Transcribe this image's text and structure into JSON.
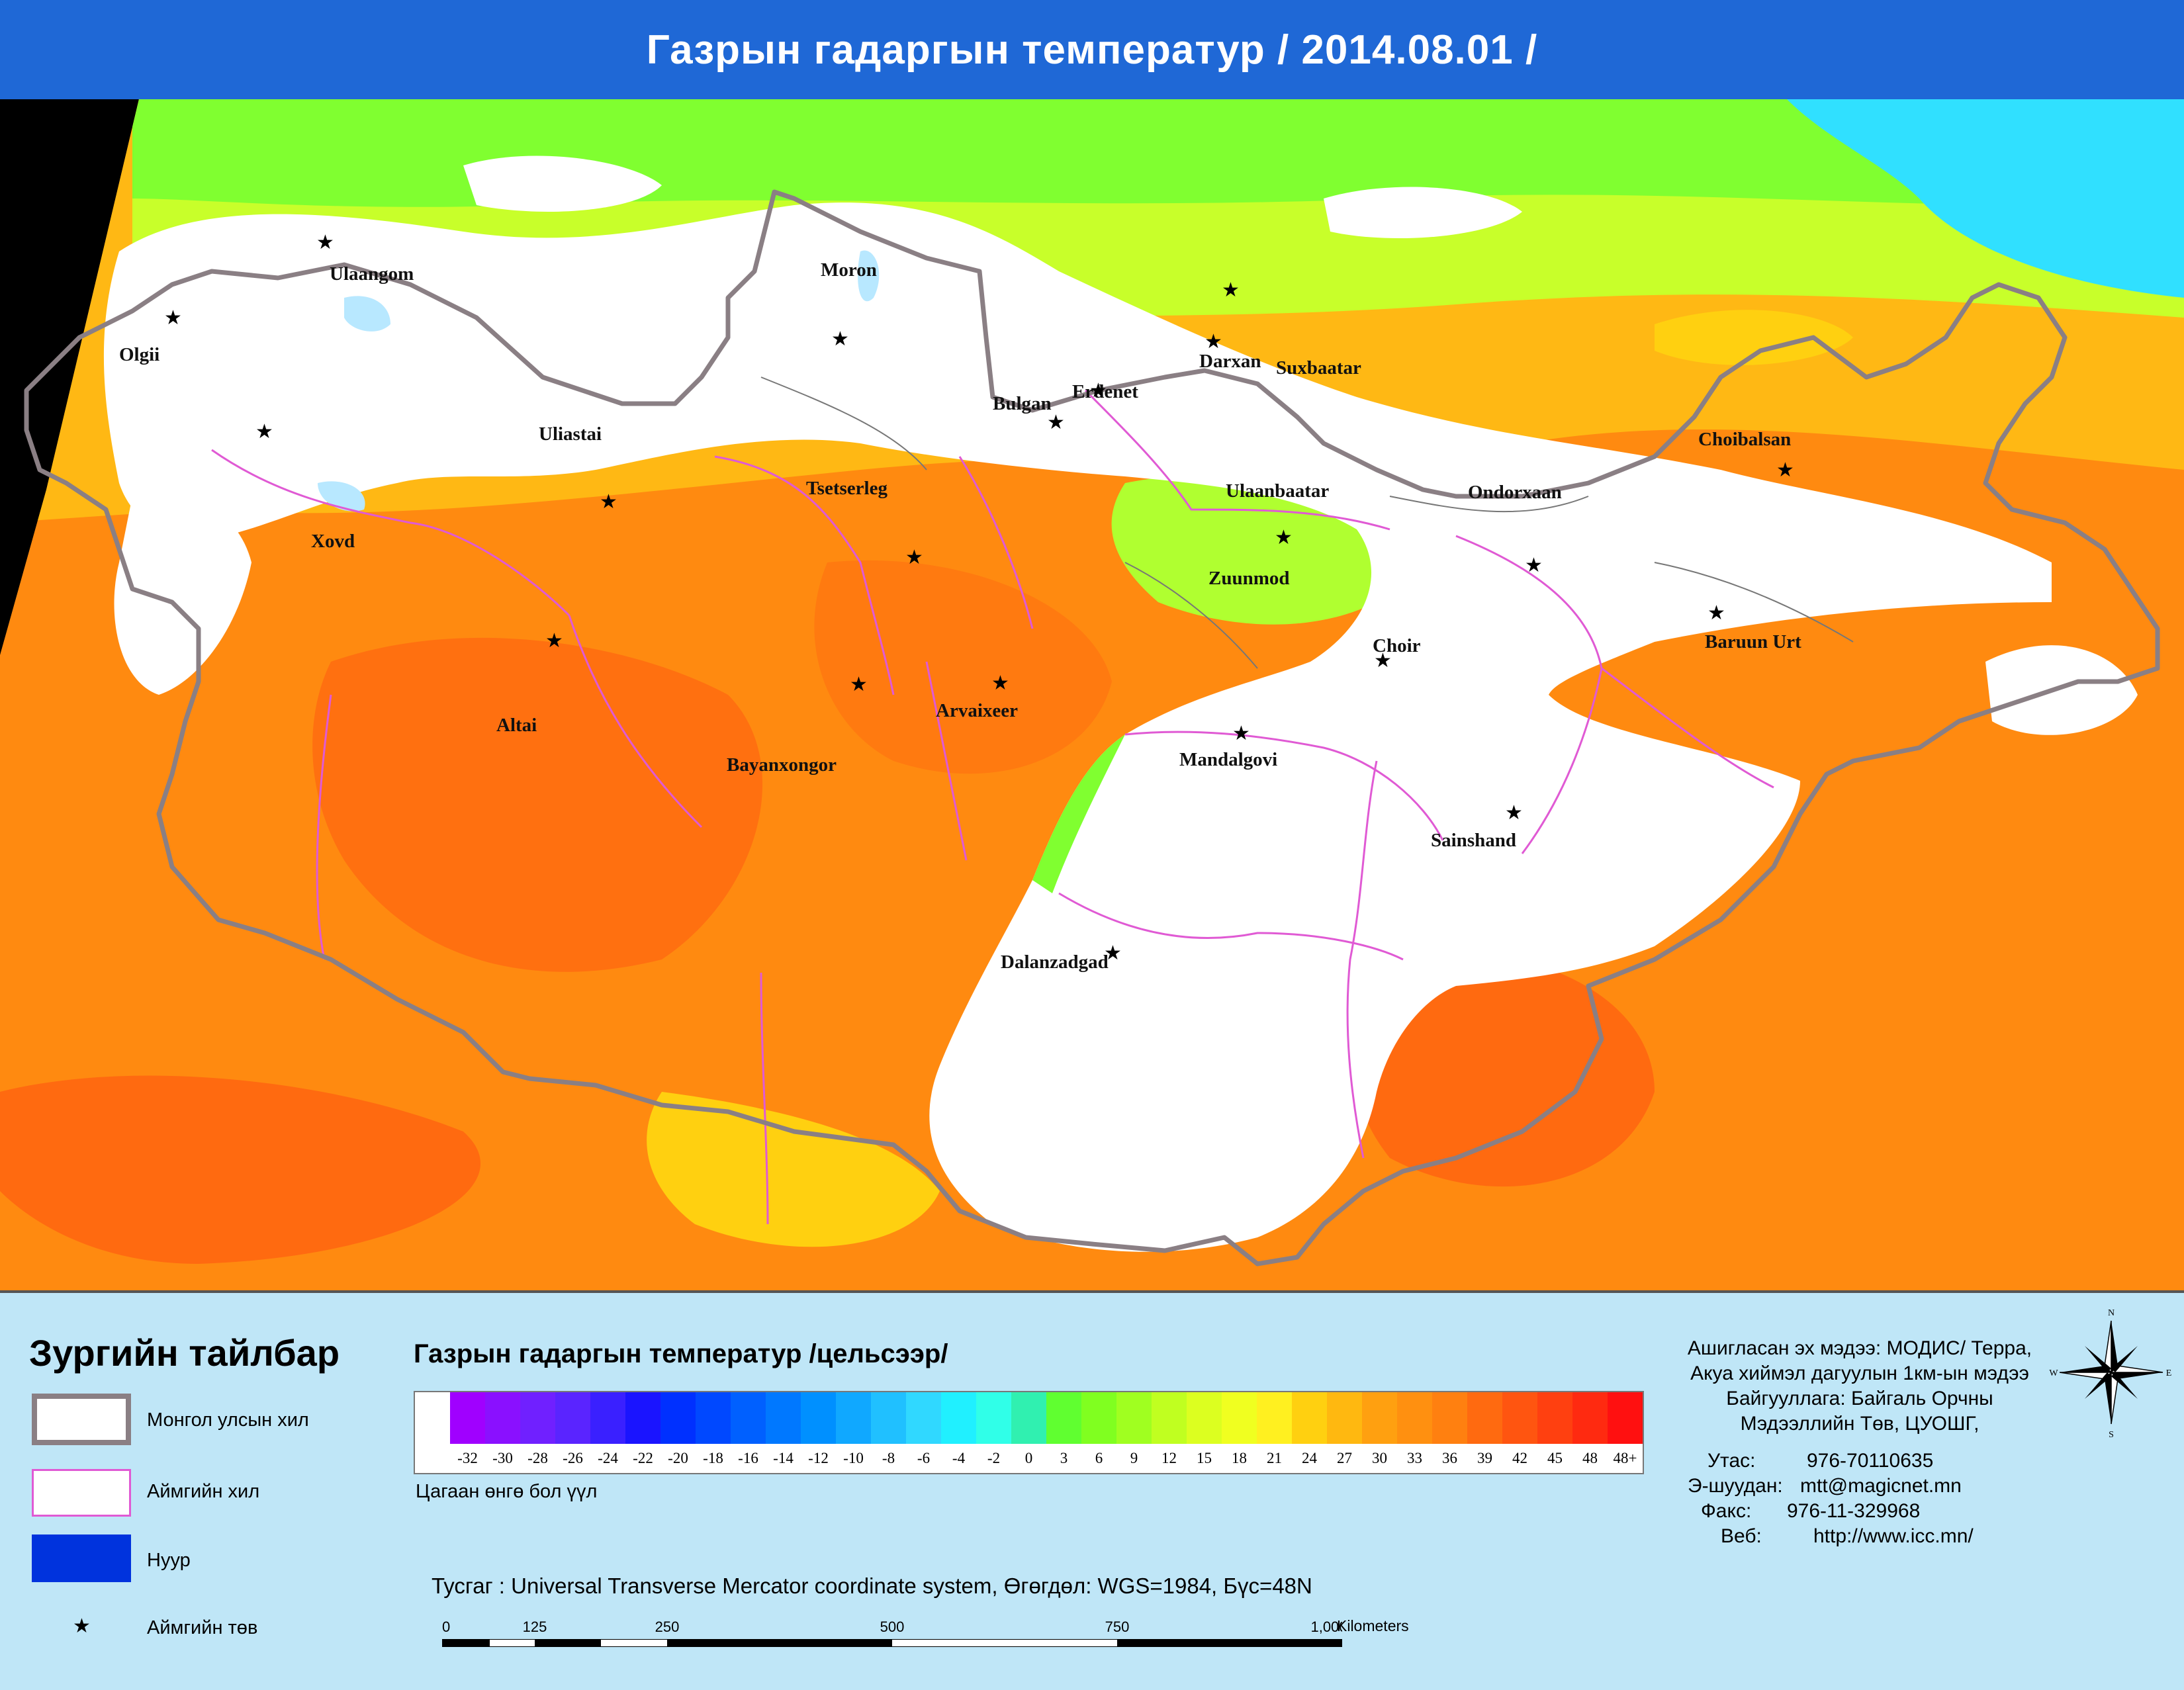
{
  "title": "Газрын гадаргын температур / 2014.08.01 /",
  "cities": [
    {
      "name": "Ulaangom",
      "label_pos": [
        498,
        418
      ],
      "star_pos": [
        492,
        368
      ]
    },
    {
      "name": "Olgii",
      "label_pos": [
        180,
        540
      ],
      "star_pos": [
        262,
        482
      ]
    },
    {
      "name": "Moron",
      "label_pos": [
        1240,
        412
      ],
      "star_pos": [
        1270,
        514
      ]
    },
    {
      "name": "Darxan",
      "label_pos": [
        1812,
        550
      ],
      "star_pos": [
        1834,
        518
      ]
    },
    {
      "name": "Suxbaatar",
      "label_pos": [
        1928,
        560
      ],
      "star_pos": [
        1860,
        440
      ]
    },
    {
      "name": "Erdenet",
      "label_pos": [
        1620,
        596
      ],
      "star_pos": [
        1660,
        592
      ]
    },
    {
      "name": "Bulgan",
      "label_pos": [
        1500,
        614
      ],
      "star_pos": [
        1596,
        640
      ]
    },
    {
      "name": "Uliastai",
      "label_pos": [
        814,
        660
      ],
      "star_pos": [
        920,
        760
      ]
    },
    {
      "name": "Tsetserleg",
      "label_pos": [
        1218,
        742
      ],
      "star_pos": [
        1382,
        844
      ]
    },
    {
      "name": "Ulaanbaatar",
      "label_pos": [
        1852,
        746
      ],
      "star_pos": [
        1940,
        814
      ]
    },
    {
      "name": "Ondorxaan",
      "label_pos": [
        2218,
        748
      ],
      "star_pos": [
        2318,
        856
      ]
    },
    {
      "name": "Choibalsan",
      "label_pos": [
        2566,
        668
      ],
      "star_pos": [
        2698,
        712
      ]
    },
    {
      "name": "Xovd",
      "label_pos": [
        470,
        822
      ],
      "star_pos": [
        400,
        654
      ]
    },
    {
      "name": "Zuunmod",
      "label_pos": [
        1826,
        878
      ],
      "star_pos": null
    },
    {
      "name": "Baruun Urt",
      "label_pos": [
        2576,
        974
      ],
      "star_pos": [
        2594,
        928
      ]
    },
    {
      "name": "Choir",
      "label_pos": [
        2074,
        980
      ],
      "star_pos": [
        2090,
        1000
      ]
    },
    {
      "name": "Arvaixeer",
      "label_pos": [
        1414,
        1078
      ],
      "star_pos": [
        1512,
        1034
      ]
    },
    {
      "name": "Altai",
      "label_pos": [
        750,
        1100
      ],
      "star_pos": [
        838,
        970
      ]
    },
    {
      "name": "Bayanxongor",
      "label_pos": [
        1098,
        1160
      ],
      "star_pos": [
        1298,
        1036
      ]
    },
    {
      "name": "Mandalgovi",
      "label_pos": [
        1782,
        1152
      ],
      "star_pos": [
        1876,
        1110
      ]
    },
    {
      "name": "Sainshand",
      "label_pos": [
        2162,
        1274
      ],
      "star_pos": [
        2288,
        1230
      ]
    },
    {
      "name": "Dalanzadgad",
      "label_pos": [
        1512,
        1458
      ],
      "star_pos": [
        1682,
        1442
      ]
    }
  ],
  "legend": {
    "title": "Зургийн тайлбар",
    "items": [
      {
        "label": "Монгол улсын хил"
      },
      {
        "label": "Аймгийн хил"
      },
      {
        "label": "Нуур"
      },
      {
        "label": "Аймгийн төв"
      }
    ]
  },
  "scale": {
    "title": "Газрын гадаргын температур /цельсээр/",
    "labels": [
      "",
      "-32",
      "-30",
      "-28",
      "-26",
      "-24",
      "-22",
      "-20",
      "-18",
      "-16",
      "-14",
      "-12",
      "-10",
      "-8",
      "-6",
      "-4",
      "-2",
      "0",
      "3",
      "6",
      "9",
      "12",
      "15",
      "18",
      "21",
      "24",
      "27",
      "30",
      "33",
      "36",
      "39",
      "42",
      "45",
      "48",
      "48+"
    ],
    "colors": [
      "#ffffff",
      "#a000ff",
      "#8a10ff",
      "#7020ff",
      "#5a24ff",
      "#3a20ff",
      "#1a14ff",
      "#0030ff",
      "#0048ff",
      "#0060ff",
      "#0078ff",
      "#0090ff",
      "#10a8ff",
      "#20c0ff",
      "#30d8ff",
      "#20f0ff",
      "#30ffe8",
      "#30f0b0",
      "#60ff30",
      "#80ff20",
      "#a0ff20",
      "#c0ff20",
      "#dcff20",
      "#f0ff20",
      "#fff020",
      "#ffd010",
      "#ffb810",
      "#ffa010",
      "#ff9010",
      "#ff8010",
      "#ff6a10",
      "#ff5510",
      "#ff4010",
      "#ff2a10",
      "#ff1010"
    ],
    "white_note": "Цагаан өнгө бол үүл"
  },
  "projection": "Тусгаг : Universal Transverse Mercator coordinate system, Өгөгдөл: WGS=1984, Бүс=48N",
  "scalebar": {
    "ticks": [
      "0",
      "125",
      "250",
      "500",
      "750",
      "1,000"
    ],
    "unit": "Kilometers"
  },
  "source": {
    "lines": [
      "Ашигласан эх мэдээ: МОДИС/ Терра,",
      "Акуа хиймэл дагуулын 1км-ын мэдээ",
      "Байгууллага: Байгаль Орчны",
      "Мэдээллийн Төв, ЦУОШГ,"
    ]
  },
  "contact": {
    "phone_label": "Утас:",
    "phone": "976-70110635",
    "email_label": "Э-шуудан:",
    "email": "mtt@magicnet.mn",
    "fax_label": "Факс:",
    "fax": "976-11-329968",
    "web_label": "Веб:",
    "web": "http://www.icc.mn/"
  },
  "compass": {
    "n": "N",
    "s": "S",
    "e": "E",
    "w": "W"
  },
  "colors": {
    "title_bar": "#1f68d6",
    "country_border": "#8a7f84",
    "aimag_border": "#e05ad4",
    "lake": "#0033dd",
    "hot": "#ff8a10",
    "cloud": "#ffffff"
  }
}
